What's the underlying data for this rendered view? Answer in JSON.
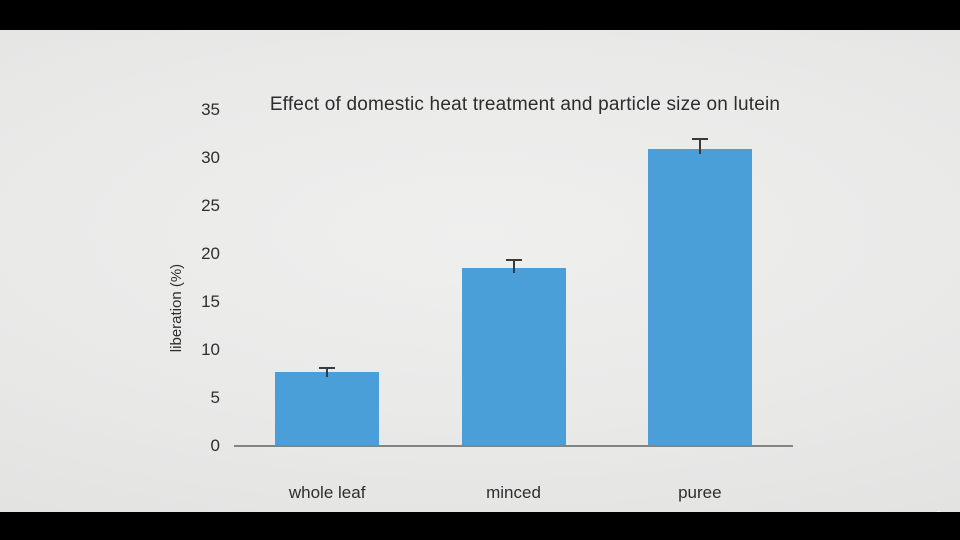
{
  "chart_data": {
    "type": "bar",
    "title": "Effect of domestic heat treatment and particle size on lutein",
    "ylabel": "liberation (%)",
    "xlabel": "",
    "categories": [
      "whole leaf",
      "minced",
      "puree"
    ],
    "values": [
      7.7,
      18.5,
      30.9
    ],
    "errors_plus": [
      0.5,
      1.0,
      1.2
    ],
    "yticks": [
      0,
      5,
      10,
      15,
      20,
      25,
      30,
      35
    ],
    "ylim": [
      0,
      35
    ],
    "grid": false,
    "legend": false,
    "bar_color": "#4a9fd9",
    "error_color": "#3a3a3a",
    "axis_color": "#848484",
    "text_color": "#2e2e2e"
  },
  "watermark": {
    "icon": "tree-icon",
    "color": "#ffffff"
  }
}
